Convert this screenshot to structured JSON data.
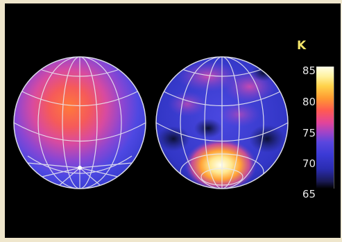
{
  "image": {
    "description_kind": "two false-color temperature globes",
    "colorbar": {
      "unit": "K",
      "ticks": [
        "85",
        "80",
        "75",
        "70",
        "65"
      ]
    }
  }
}
